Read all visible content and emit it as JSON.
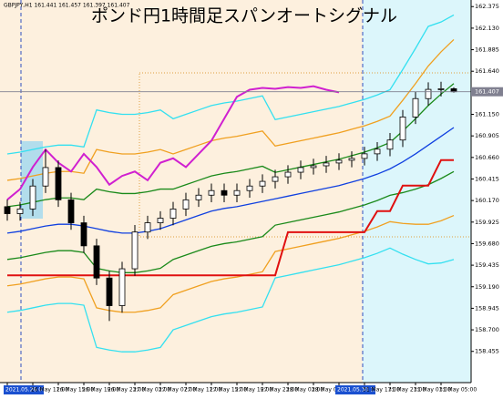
{
  "chart_data": {
    "type": "candlestick",
    "title": "ポンド円1時間足スパンオートシグナル",
    "info": "GBPJPY,H1 161.441 161.457 161.397 161.407",
    "categories": [
      "2021.05.26 07:00",
      null,
      "26 May 11:00",
      null,
      "26 May 15:00",
      null,
      "26 May 19:00",
      null,
      "26 May 23:00",
      null,
      "27 May 03:00",
      null,
      "27 May 07:00",
      null,
      "27 May 11:00",
      null,
      "27 May 15:00",
      null,
      "27 May 19:00",
      null,
      "27 May 23:00",
      null,
      "28 May 03:00",
      null,
      "28 May 07:00",
      null,
      "2021.05.30 15:00",
      null,
      "31 May 17:00",
      null,
      "31 May 21:00",
      null,
      "31 May 01:00",
      null,
      "31 May 05:00",
      null
    ],
    "open": [
      160.1,
      160.021,
      160.074,
      160.335,
      160.545,
      160.178,
      159.917,
      159.655,
      159.289,
      158.975,
      159.394,
      159.812,
      159.917,
      159.969,
      160.074,
      160.178,
      160.231,
      160.283,
      160.231,
      160.283,
      160.335,
      160.388,
      160.44,
      160.492,
      160.545,
      160.565,
      160.597,
      160.628,
      160.649,
      160.701,
      160.754,
      160.858,
      161.12,
      161.329,
      161.434,
      161.441
    ],
    "high": [
      160.18,
      160.154,
      160.415,
      160.75,
      160.625,
      160.258,
      159.997,
      159.735,
      159.369,
      159.474,
      159.892,
      159.997,
      160.049,
      160.154,
      160.258,
      160.311,
      160.363,
      160.363,
      160.363,
      160.415,
      160.468,
      160.52,
      160.572,
      160.625,
      160.645,
      160.677,
      160.708,
      160.729,
      160.781,
      160.834,
      160.938,
      161.2,
      161.409,
      161.514,
      161.521,
      161.457
    ],
    "low": [
      159.941,
      159.941,
      159.994,
      160.255,
      160.098,
      159.837,
      159.575,
      159.209,
      158.8,
      158.895,
      159.314,
      159.732,
      159.837,
      159.889,
      159.994,
      160.098,
      160.151,
      160.151,
      160.151,
      160.203,
      160.255,
      160.308,
      160.36,
      160.412,
      160.465,
      160.485,
      160.517,
      160.548,
      160.569,
      160.621,
      160.674,
      160.778,
      161.04,
      161.249,
      161.354,
      161.397
    ],
    "close": [
      160.021,
      160.074,
      160.335,
      160.545,
      160.178,
      159.917,
      159.655,
      159.289,
      158.975,
      159.394,
      159.812,
      159.917,
      159.969,
      160.074,
      160.178,
      160.231,
      160.283,
      160.231,
      160.283,
      160.335,
      160.388,
      160.44,
      160.492,
      160.545,
      160.565,
      160.597,
      160.628,
      160.649,
      160.701,
      160.754,
      160.858,
      161.12,
      161.329,
      161.434,
      161.441,
      161.407
    ],
    "up_color": "#ffffff",
    "down_color": "#000000",
    "lines": [
      {
        "color": "#33e0f0",
        "values": [
          160.7,
          160.72,
          160.75,
          160.78,
          160.8,
          160.8,
          160.78,
          161.2,
          161.17,
          161.15,
          161.15,
          161.17,
          161.2,
          161.1,
          161.15,
          161.2,
          161.25,
          161.28,
          161.3,
          161.33,
          161.36,
          161.09,
          161.12,
          161.15,
          161.18,
          161.21,
          161.24,
          161.28,
          161.32,
          161.37,
          161.43,
          161.66,
          161.9,
          162.15,
          162.2,
          162.28
        ]
      },
      {
        "color": "#33e0f0",
        "values": [
          158.9,
          158.92,
          158.95,
          158.98,
          159.0,
          159.0,
          158.98,
          158.5,
          158.47,
          158.45,
          158.45,
          158.47,
          158.5,
          158.7,
          158.75,
          158.8,
          158.85,
          158.88,
          158.9,
          158.93,
          158.96,
          159.29,
          159.32,
          159.35,
          159.38,
          159.41,
          159.44,
          159.48,
          159.52,
          159.57,
          159.63,
          159.56,
          159.5,
          159.45,
          159.46,
          159.5
        ]
      },
      {
        "color": "#f0a020",
        "values": [
          160.4,
          160.42,
          160.45,
          160.48,
          160.5,
          160.5,
          160.48,
          160.75,
          160.72,
          160.7,
          160.7,
          160.72,
          160.75,
          160.7,
          160.75,
          160.8,
          160.85,
          160.88,
          160.9,
          160.93,
          160.96,
          160.79,
          160.82,
          160.85,
          160.88,
          160.91,
          160.94,
          160.98,
          161.02,
          161.07,
          161.13,
          161.31,
          161.5,
          161.7,
          161.86,
          162.0
        ]
      },
      {
        "color": "#f0a020",
        "values": [
          159.2,
          159.22,
          159.25,
          159.28,
          159.3,
          159.3,
          159.28,
          158.95,
          158.92,
          158.9,
          158.9,
          158.92,
          158.95,
          159.1,
          159.15,
          159.2,
          159.25,
          159.28,
          159.3,
          159.33,
          159.36,
          159.59,
          159.62,
          159.65,
          159.68,
          159.71,
          159.74,
          159.78,
          159.82,
          159.87,
          159.93,
          159.91,
          159.9,
          159.9,
          159.94,
          160.0
        ]
      },
      {
        "color": "#1a8a1a",
        "values": [
          160.1,
          160.12,
          160.15,
          160.18,
          160.2,
          160.2,
          160.18,
          160.3,
          160.27,
          160.25,
          160.25,
          160.27,
          160.3,
          160.3,
          160.35,
          160.4,
          160.45,
          160.48,
          160.5,
          160.53,
          160.56,
          160.49,
          160.52,
          160.55,
          160.58,
          160.61,
          160.64,
          160.68,
          160.72,
          160.77,
          160.83,
          160.96,
          161.1,
          161.25,
          161.38,
          161.5
        ]
      },
      {
        "color": "#1a8a1a",
        "values": [
          159.5,
          159.52,
          159.55,
          159.58,
          159.6,
          159.6,
          159.58,
          159.4,
          159.37,
          159.35,
          159.35,
          159.37,
          159.4,
          159.5,
          159.55,
          159.6,
          159.65,
          159.68,
          159.7,
          159.73,
          159.76,
          159.89,
          159.92,
          159.95,
          159.98,
          160.01,
          160.04,
          160.08,
          160.12,
          160.17,
          160.23,
          160.26,
          160.3,
          160.35,
          160.42,
          160.5
        ]
      },
      {
        "color": "#1040e0",
        "values": [
          159.8,
          159.82,
          159.85,
          159.88,
          159.9,
          159.9,
          159.88,
          159.85,
          159.82,
          159.8,
          159.8,
          159.82,
          159.85,
          159.9,
          159.95,
          160.0,
          160.05,
          160.08,
          160.1,
          160.13,
          160.16,
          160.19,
          160.22,
          160.25,
          160.28,
          160.31,
          160.34,
          160.38,
          160.42,
          160.47,
          160.53,
          160.61,
          160.7,
          160.8,
          160.9,
          161.0
        ]
      },
      {
        "color": "#e01010",
        "values": [
          159.32,
          159.32,
          159.32,
          159.32,
          159.32,
          159.32,
          159.32,
          159.32,
          159.32,
          159.32,
          159.32,
          159.32,
          159.32,
          159.32,
          159.32,
          159.32,
          159.32,
          159.32,
          159.32,
          159.32,
          159.32,
          159.32,
          159.81,
          159.81,
          159.81,
          159.81,
          159.81,
          159.81,
          159.81,
          160.05,
          160.05,
          160.34,
          160.34,
          160.34,
          160.63,
          160.63
        ]
      },
      {
        "color": "#d020d0",
        "values": [
          160.18,
          160.3,
          160.55,
          160.75,
          160.6,
          160.5,
          160.7,
          160.55,
          160.35,
          160.45,
          160.5,
          160.4,
          160.6,
          160.65,
          160.55,
          160.7,
          160.85,
          161.1,
          161.35,
          161.43,
          161.45,
          161.44,
          161.46,
          161.45,
          161.47,
          161.43,
          161.4,
          null,
          null,
          null,
          null,
          null,
          null,
          null,
          null,
          null
        ]
      }
    ],
    "last_price": 161.407,
    "last_price_color": "#808090",
    "ylim": [
      158.1,
      162.45
    ],
    "yticks": [
      162.375,
      {
        "value": 162.13,
        "label": "162.130"
      },
      161.885,
      {
        "value": 161.64,
        "label": "161.640"
      },
      161.395,
      {
        "value": 161.15,
        "label": "161.150"
      },
      160.905,
      {
        "value": 160.66,
        "label": "160.660"
      },
      160.415,
      {
        "value": 160.17,
        "label": "160.170"
      },
      159.925,
      {
        "value": 159.68,
        "label": "159.680"
      },
      159.435,
      {
        "value": 159.19,
        "label": "159.190"
      },
      158.945,
      {
        "value": 158.7,
        "label": "158.700"
      },
      158.455
    ],
    "grid": false
  }
}
